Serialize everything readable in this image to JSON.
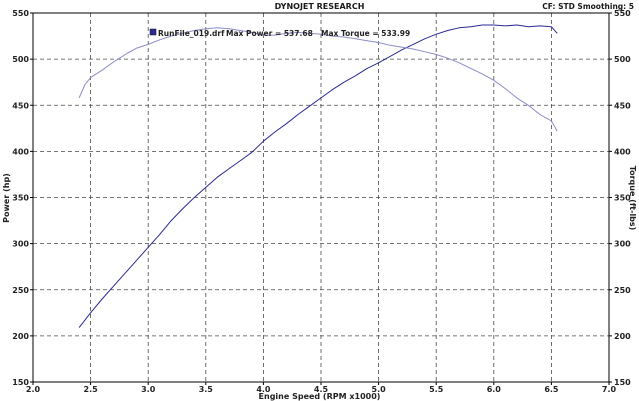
{
  "chart_data": {
    "type": "line",
    "title": "DYNOJET RESEARCH",
    "info_right": "CF: STD  Smoothing: 5",
    "legend": {
      "run_name": "RunFile_019.drf",
      "max_power_label": "Max Power = 537.68",
      "max_torque_label": "Max Torque = 533.99",
      "swatch_color": "#2c2c9a"
    },
    "xlabel": "Engine Speed (RPM x1000)",
    "ylabel_left": "Power (hp)",
    "ylabel_right": "Torque (ft-lbs)",
    "xlim": [
      2.0,
      7.0
    ],
    "ylim": [
      150,
      550
    ],
    "x_ticks": [
      "2.0",
      "2.5",
      "3.0",
      "3.5",
      "4.0",
      "4.5",
      "5.0",
      "5.5",
      "6.0",
      "6.5",
      "7.0"
    ],
    "y_ticks": [
      "150",
      "200",
      "250",
      "300",
      "350",
      "400",
      "450",
      "500",
      "550"
    ],
    "grid": true,
    "series": [
      {
        "name": "Power",
        "color": "#2a2a96",
        "x": [
          2.4,
          2.5,
          2.6,
          2.7,
          2.8,
          2.9,
          3.0,
          3.1,
          3.2,
          3.3,
          3.4,
          3.5,
          3.6,
          3.7,
          3.8,
          3.9,
          4.0,
          4.1,
          4.2,
          4.3,
          4.4,
          4.5,
          4.6,
          4.7,
          4.8,
          4.9,
          5.0,
          5.1,
          5.2,
          5.3,
          5.4,
          5.5,
          5.6,
          5.7,
          5.8,
          5.9,
          6.0,
          6.1,
          6.2,
          6.3,
          6.4,
          6.5,
          6.55
        ],
        "values": [
          209,
          225,
          240,
          254,
          268,
          282,
          296,
          310,
          325,
          338,
          350,
          361,
          372,
          381,
          390,
          399,
          411,
          421,
          430,
          440,
          449,
          458,
          467,
          475,
          482,
          490,
          496,
          503,
          510,
          516,
          522,
          527,
          531,
          534,
          535,
          537,
          537,
          536,
          537,
          535,
          536,
          535,
          528
        ]
      },
      {
        "name": "Torque",
        "color": "#8c8cc8",
        "x": [
          2.4,
          2.45,
          2.5,
          2.6,
          2.7,
          2.8,
          2.9,
          3.0,
          3.1,
          3.2,
          3.3,
          3.4,
          3.5,
          3.6,
          3.7,
          3.8,
          3.9,
          4.0,
          4.1,
          4.2,
          4.3,
          4.4,
          4.5,
          4.6,
          4.7,
          4.8,
          4.9,
          5.0,
          5.1,
          5.2,
          5.3,
          5.4,
          5.5,
          5.6,
          5.7,
          5.8,
          5.9,
          6.0,
          6.1,
          6.2,
          6.3,
          6.4,
          6.5,
          6.55
        ],
        "values": [
          458,
          472,
          480,
          488,
          497,
          505,
          512,
          516,
          521,
          525,
          528,
          531,
          533,
          534,
          533,
          531,
          529,
          526,
          526,
          528,
          529,
          528,
          527,
          525,
          524,
          522,
          520,
          518,
          515,
          513,
          511,
          508,
          505,
          501,
          496,
          490,
          484,
          477,
          468,
          458,
          450,
          440,
          433,
          422
        ]
      }
    ]
  }
}
